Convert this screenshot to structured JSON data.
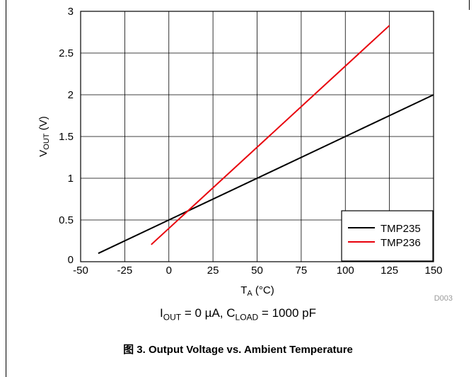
{
  "chart_data": {
    "type": "line",
    "figure_code": "D003",
    "x_axis": {
      "label_main": "T",
      "label_sub": "A",
      "label_rest": " (°C)",
      "range": [
        -50,
        150
      ],
      "ticks": [
        -50,
        -25,
        0,
        25,
        50,
        75,
        100,
        125,
        150
      ],
      "tick_labels": [
        "-50",
        "-25",
        "0",
        "25",
        "50",
        "75",
        "100",
        "125",
        "150"
      ]
    },
    "y_axis": {
      "label_main": "V",
      "label_sub": "OUT",
      "label_rest": " (V)",
      "range": [
        0,
        3
      ],
      "ticks": [
        0,
        0.5,
        1,
        1.5,
        2,
        2.5,
        3
      ],
      "tick_labels": [
        "0",
        "0.5",
        "1",
        "1.5",
        "2",
        "2.5",
        "3"
      ]
    },
    "grid": true,
    "legend_position": "bottom-right",
    "series": [
      {
        "name": "TMP235",
        "color": "#000000",
        "x": [
          -40,
          150
        ],
        "y": [
          0.1,
          2.0
        ]
      },
      {
        "name": "TMP236",
        "color": "#e8000b",
        "x": [
          -10,
          125
        ],
        "y": [
          0.205,
          2.83
        ]
      }
    ]
  },
  "conditions": {
    "i_main": "I",
    "i_sub": "OUT",
    "i_rest": " = 0 µA, C",
    "c_sub": "LOAD",
    "c_rest": " = 1000 pF"
  },
  "caption": {
    "prefix": "图",
    "text": " 3. Output Voltage vs. Ambient Temperature"
  }
}
